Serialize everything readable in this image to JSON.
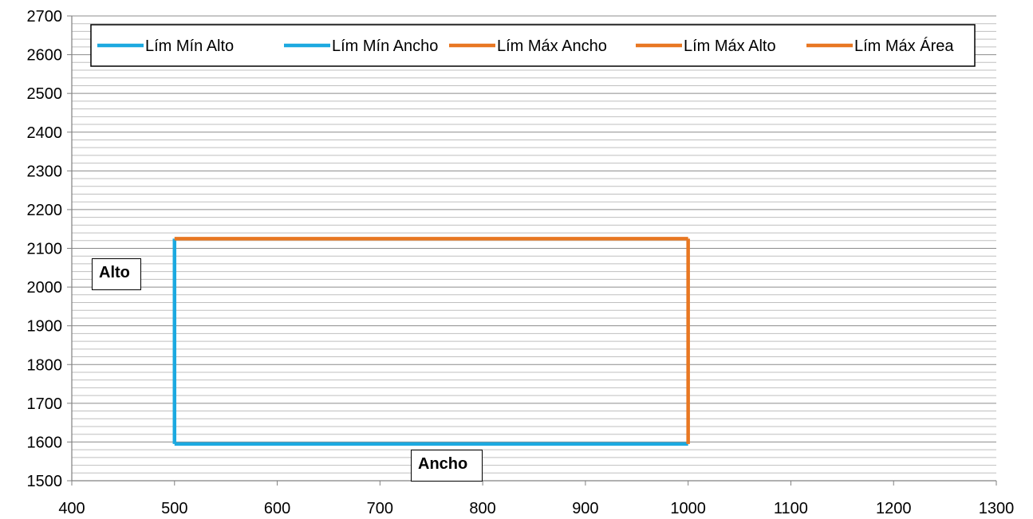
{
  "chart_data": {
    "type": "line",
    "title": "",
    "xlabel": "Ancho",
    "ylabel": "Alto",
    "xlim": [
      400,
      1300
    ],
    "ylim": [
      1500,
      2700
    ],
    "x_ticks": [
      400,
      500,
      600,
      700,
      800,
      900,
      1000,
      1100,
      1200,
      1300
    ],
    "y_ticks": [
      1500,
      1600,
      1700,
      1800,
      1900,
      2000,
      2100,
      2200,
      2300,
      2400,
      2500,
      2600,
      2700
    ],
    "y_minor_step": 20,
    "grid": true,
    "legend_position": "top",
    "series": [
      {
        "name": "Lím Mín Alto",
        "color": "#1CA9E0",
        "points": [
          [
            500,
            1595
          ],
          [
            500,
            2125
          ]
        ]
      },
      {
        "name": "Lím Mín Ancho",
        "color": "#1CA9E0",
        "points": [
          [
            500,
            1595
          ],
          [
            1000,
            1595
          ]
        ]
      },
      {
        "name": "Lím Máx Ancho",
        "color": "#E87722",
        "points": [
          [
            1000,
            1595
          ],
          [
            1000,
            2125
          ]
        ]
      },
      {
        "name": "Lím Máx Alto",
        "color": "#E87722",
        "points": [
          [
            500,
            2125
          ],
          [
            1000,
            2125
          ]
        ]
      },
      {
        "name": "Lím Máx Área",
        "color": "#E87722",
        "points": []
      }
    ]
  }
}
